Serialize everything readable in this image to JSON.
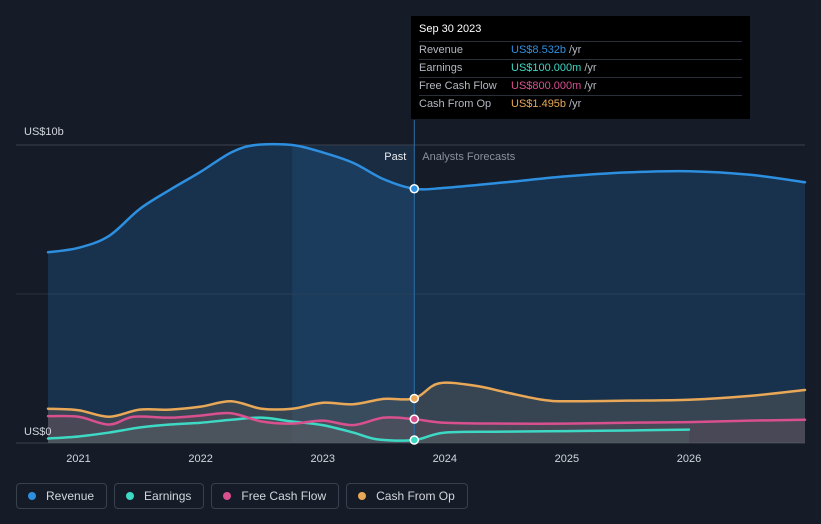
{
  "chart_data": {
    "type": "area",
    "title": "",
    "ylabel": "",
    "xlabel": "",
    "y_axis_labels": [
      "US$10b",
      "US$0"
    ],
    "ylim": [
      0,
      10
    ],
    "xlim": [
      2020.75,
      2026.95
    ],
    "x_ticks": [
      2021,
      2022,
      2023,
      2024,
      2025,
      2026
    ],
    "x_tick_labels": [
      "2021",
      "2022",
      "2023",
      "2024",
      "2025",
      "2026"
    ],
    "divider_x": 2023.75,
    "past_shade_start": 2022.75,
    "region_labels": {
      "past": "Past",
      "forecast": "Analysts Forecasts"
    },
    "series": [
      {
        "name": "Revenue",
        "color": "#2d8fe0",
        "marker_x": 2023.75,
        "marker_y": 8.532,
        "points": [
          [
            2020.75,
            6.4
          ],
          [
            2021.0,
            6.55
          ],
          [
            2021.25,
            6.95
          ],
          [
            2021.5,
            7.85
          ],
          [
            2021.75,
            8.5
          ],
          [
            2022.0,
            9.1
          ],
          [
            2022.25,
            9.75
          ],
          [
            2022.45,
            10.0
          ],
          [
            2022.75,
            10.0
          ],
          [
            2023.0,
            9.75
          ],
          [
            2023.25,
            9.4
          ],
          [
            2023.5,
            8.85
          ],
          [
            2023.75,
            8.532
          ],
          [
            2024.0,
            8.56
          ],
          [
            2024.5,
            8.75
          ],
          [
            2025.0,
            8.95
          ],
          [
            2025.5,
            9.08
          ],
          [
            2026.0,
            9.12
          ],
          [
            2026.5,
            9.0
          ],
          [
            2026.95,
            8.75
          ]
        ]
      },
      {
        "name": "Earnings",
        "color": "#3dd9c4",
        "marker_x": 2023.75,
        "marker_y": 0.1,
        "points": [
          [
            2020.75,
            0.15
          ],
          [
            2021.0,
            0.22
          ],
          [
            2021.25,
            0.35
          ],
          [
            2021.5,
            0.52
          ],
          [
            2021.75,
            0.62
          ],
          [
            2022.0,
            0.68
          ],
          [
            2022.25,
            0.78
          ],
          [
            2022.5,
            0.85
          ],
          [
            2022.75,
            0.72
          ],
          [
            2023.0,
            0.6
          ],
          [
            2023.25,
            0.35
          ],
          [
            2023.45,
            0.12
          ],
          [
            2023.75,
            0.1
          ],
          [
            2024.0,
            0.35
          ],
          [
            2024.5,
            0.38
          ],
          [
            2025.0,
            0.4
          ],
          [
            2025.5,
            0.42
          ],
          [
            2026.0,
            0.45
          ]
        ]
      },
      {
        "name": "Free Cash Flow",
        "color": "#d9508f",
        "marker_x": 2023.75,
        "marker_y": 0.8,
        "points": [
          [
            2020.75,
            0.9
          ],
          [
            2021.0,
            0.88
          ],
          [
            2021.25,
            0.62
          ],
          [
            2021.45,
            0.88
          ],
          [
            2021.75,
            0.85
          ],
          [
            2022.0,
            0.92
          ],
          [
            2022.25,
            1.0
          ],
          [
            2022.5,
            0.72
          ],
          [
            2022.75,
            0.65
          ],
          [
            2023.0,
            0.75
          ],
          [
            2023.25,
            0.6
          ],
          [
            2023.5,
            0.85
          ],
          [
            2023.75,
            0.8
          ],
          [
            2024.0,
            0.68
          ],
          [
            2024.5,
            0.65
          ],
          [
            2025.0,
            0.65
          ],
          [
            2025.5,
            0.68
          ],
          [
            2026.0,
            0.7
          ],
          [
            2026.5,
            0.75
          ],
          [
            2026.95,
            0.78
          ]
        ]
      },
      {
        "name": "Cash From Op",
        "color": "#e8a857",
        "marker_x": 2023.75,
        "marker_y": 1.495,
        "points": [
          [
            2020.75,
            1.15
          ],
          [
            2021.0,
            1.1
          ],
          [
            2021.25,
            0.88
          ],
          [
            2021.5,
            1.12
          ],
          [
            2021.75,
            1.12
          ],
          [
            2022.0,
            1.22
          ],
          [
            2022.25,
            1.4
          ],
          [
            2022.5,
            1.15
          ],
          [
            2022.75,
            1.15
          ],
          [
            2023.0,
            1.35
          ],
          [
            2023.25,
            1.3
          ],
          [
            2023.5,
            1.48
          ],
          [
            2023.75,
            1.495
          ],
          [
            2023.95,
            2.0
          ],
          [
            2024.25,
            1.92
          ],
          [
            2024.5,
            1.7
          ],
          [
            2024.8,
            1.45
          ],
          [
            2025.0,
            1.4
          ],
          [
            2025.5,
            1.42
          ],
          [
            2026.0,
            1.45
          ],
          [
            2026.5,
            1.58
          ],
          [
            2026.95,
            1.78
          ]
        ]
      }
    ]
  },
  "tooltip": {
    "date": "Sep 30 2023",
    "rows": [
      {
        "label": "Revenue",
        "value": "US$8.532b",
        "unit": "/yr",
        "color": "#2d8fe0"
      },
      {
        "label": "Earnings",
        "value": "US$100.000m",
        "unit": "/yr",
        "color": "#3dd9c4"
      },
      {
        "label": "Free Cash Flow",
        "value": "US$800.000m",
        "unit": "/yr",
        "color": "#d9508f"
      },
      {
        "label": "Cash From Op",
        "value": "US$1.495b",
        "unit": "/yr",
        "color": "#e8a857"
      }
    ]
  },
  "legend": [
    {
      "label": "Revenue",
      "color": "#2d8fe0"
    },
    {
      "label": "Earnings",
      "color": "#3dd9c4"
    },
    {
      "label": "Free Cash Flow",
      "color": "#d9508f"
    },
    {
      "label": "Cash From Op",
      "color": "#e8a857"
    }
  ]
}
